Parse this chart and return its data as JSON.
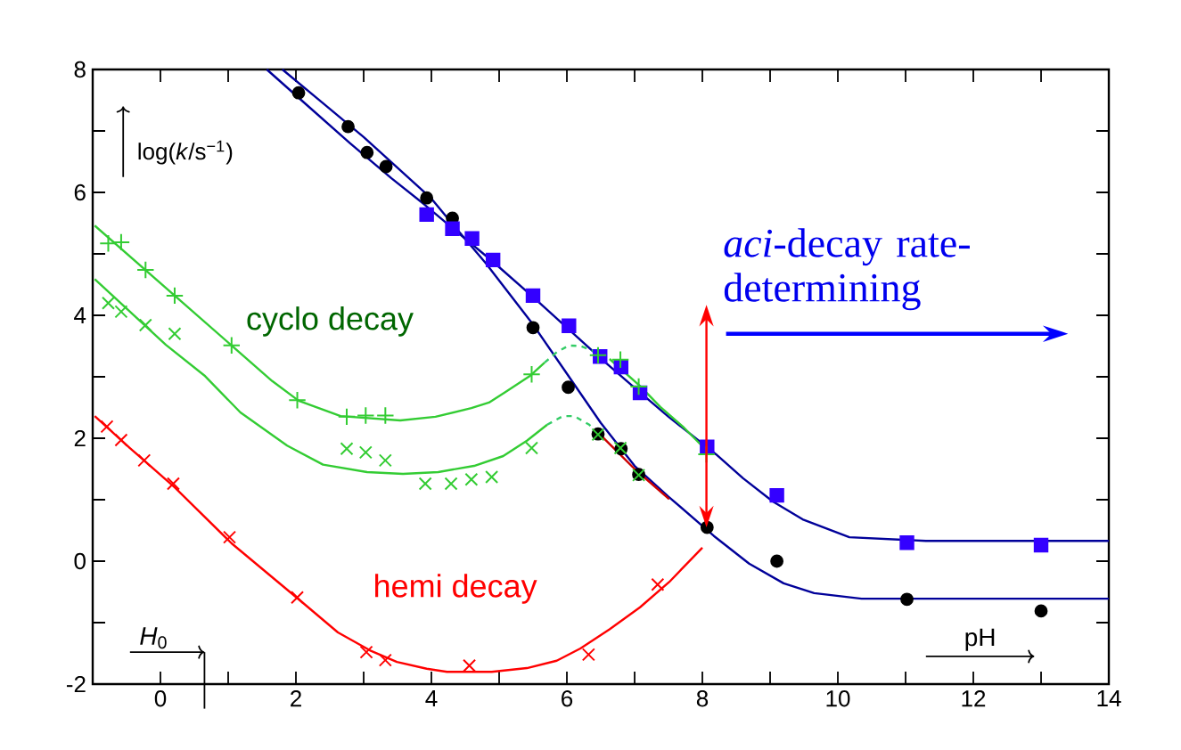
{
  "chart_data": {
    "type": "scatter",
    "xlabel": "pH",
    "ylabel": "log(*k*/s$^{−1}$)",
    "xlim": [
      -1,
      14
    ],
    "ylim": [
      -2,
      8
    ],
    "xticks": [
      {
        "value": -1,
        "label": null
      },
      0,
      {
        "value": 1,
        "label": null
      },
      2,
      {
        "value": 3,
        "label": null
      },
      4,
      {
        "value": 5,
        "label": null
      },
      6,
      {
        "value": 7,
        "label": null
      },
      8,
      {
        "value": 9,
        "label": null
      },
      10,
      {
        "value": 11,
        "label": null
      },
      12,
      {
        "value": 13,
        "label": null
      },
      14
    ],
    "yticks": [
      -2,
      {
        "value": -1,
        "label": null
      },
      0,
      {
        "value": 1,
        "label": null
      },
      2,
      {
        "value": 3,
        "label": null
      },
      4,
      {
        "value": 5,
        "label": null
      },
      6,
      {
        "value": 7,
        "label": null
      },
      8
    ],
    "grid": false,
    "marker": "cross",
    "annotations": [
      "cyclo decay",
      "hemi decay",
      "*aci*-decay rate-determining",
      "*H*$_{0}$"
    ],
    "series": [
      {
        "marker": "circle",
        "color": "#000000",
        "x": [
          2.04,
          2.77,
          3.05,
          3.33,
          3.93,
          4.31,
          5.5,
          6.02,
          6.46,
          6.8,
          7.06,
          8.07,
          9.1,
          11.02,
          13.0
        ],
        "values": [
          7.62,
          7.07,
          6.65,
          6.42,
          5.91,
          5.58,
          3.8,
          2.83,
          2.07,
          1.83,
          1.41,
          0.55,
          0.0,
          -0.62,
          -0.81
        ]
      },
      {
        "marker": "square",
        "color": "#3300ff",
        "x": [
          3.93,
          4.31,
          4.6,
          4.91,
          5.5,
          6.03,
          6.49,
          6.8,
          7.08,
          8.07,
          9.1,
          11.02,
          13.0
        ],
        "values": [
          5.64,
          5.41,
          5.25,
          4.9,
          4.32,
          3.83,
          3.33,
          3.16,
          2.74,
          1.86,
          1.07,
          0.3,
          0.26
        ]
      },
      {
        "type": "line",
        "marker": "none",
        "line_style": "solid",
        "color": "#000099",
        "x": [
          1.8,
          2.4,
          3.0,
          3.5,
          4.0,
          4.3,
          4.8,
          5.5,
          6.0,
          6.5,
          7.0,
          7.5,
          8.17,
          8.69,
          9.2,
          9.65,
          10.35,
          14
        ],
        "values": [
          8.0,
          7.45,
          6.9,
          6.4,
          5.9,
          5.5,
          4.85,
          3.85,
          3.05,
          2.25,
          1.55,
          1.05,
          0.41,
          -0.04,
          -0.36,
          -0.52,
          -0.61,
          -0.61
        ]
      },
      {
        "type": "line",
        "marker": "none",
        "line_style": "solid",
        "color": "#000099",
        "x": [
          1.57,
          2.04,
          2.8,
          3.41,
          3.9,
          4.3,
          4.9,
          5.5,
          6.0,
          6.5,
          7.0,
          7.5,
          8.2,
          8.6,
          9.04,
          9.48,
          10.17,
          11.3,
          14
        ],
        "values": [
          8.0,
          7.54,
          6.8,
          6.23,
          5.8,
          5.43,
          4.88,
          4.3,
          3.8,
          3.3,
          2.82,
          2.35,
          1.74,
          1.35,
          0.97,
          0.68,
          0.39,
          0.33,
          0.33
        ]
      },
      {
        "type": "line",
        "marker": "none",
        "line_style": "solid",
        "color": "#33cc33",
        "x": [
          -0.97,
          0.21,
          1.05,
          1.65,
          2.04,
          2.66,
          3.54,
          4.06,
          4.59,
          4.85,
          5.09,
          5.45,
          5.67
        ],
        "values": [
          5.46,
          4.32,
          3.51,
          2.93,
          2.61,
          2.36,
          2.29,
          2.35,
          2.49,
          2.58,
          2.75,
          3.01,
          3.23
        ]
      },
      {
        "type": "line",
        "marker": "none",
        "line_style": "dashed",
        "color": "#33cc66",
        "x": [
          5.67,
          5.85,
          6.03,
          6.2,
          6.37,
          6.63
        ],
        "values": [
          3.23,
          3.4,
          3.51,
          3.5,
          3.43,
          3.29
        ]
      },
      {
        "type": "line",
        "marker": "none",
        "line_style": "solid",
        "color": "#33cc33",
        "x": [
          6.63,
          7.08,
          7.38,
          7.73,
          7.99
        ],
        "values": [
          3.29,
          2.85,
          2.51,
          2.17,
          1.88
        ]
      },
      {
        "type": "line",
        "marker": "none",
        "line_style": "solid",
        "color": "#33cc33",
        "x": [
          -0.97,
          0.08,
          0.66,
          1.18,
          1.87,
          2.4,
          3.05,
          3.58,
          4.1,
          4.63,
          5.06,
          5.41,
          5.71
        ],
        "values": [
          4.59,
          3.52,
          3.01,
          2.42,
          1.88,
          1.57,
          1.45,
          1.42,
          1.45,
          1.55,
          1.71,
          1.96,
          2.22
        ]
      },
      {
        "type": "line",
        "marker": "none",
        "line_style": "dashed",
        "color": "#33cc66",
        "x": [
          5.71,
          5.94,
          6.11,
          6.33,
          6.49
        ],
        "values": [
          2.22,
          2.36,
          2.36,
          2.22,
          2.06
        ]
      },
      {
        "type": "line",
        "marker": "none",
        "line_style": "solid",
        "color": "#ff0000",
        "x": [
          -0.97,
          -0.45,
          0.21,
          1.05,
          2.04,
          2.62,
          3.09,
          3.49,
          3.93,
          4.23,
          4.89,
          5.41,
          5.85,
          6.2,
          6.63,
          7.08,
          7.51,
          8.0
        ],
        "values": [
          2.36,
          1.84,
          1.2,
          0.29,
          -0.62,
          -1.16,
          -1.45,
          -1.64,
          -1.75,
          -1.8,
          -1.8,
          -1.74,
          -1.62,
          -1.42,
          -1.11,
          -0.75,
          -0.34,
          0.22
        ]
      },
      {
        "type": "line",
        "marker": "none",
        "line_style": "solid",
        "color": "#cc0000",
        "x": [
          6.49,
          7.0,
          7.51
        ],
        "values": [
          2.06,
          1.5,
          1.01
        ]
      },
      {
        "color": "#33cc33",
        "x": [
          -0.77,
          -0.58,
          -0.22,
          0.21,
          1.05,
          2.02,
          2.75,
          3.03,
          3.32,
          5.48,
          6.46,
          6.79,
          7.06,
          8.06
        ],
        "values": [
          5.17,
          5.19,
          4.74,
          4.32,
          3.51,
          2.62,
          2.35,
          2.37,
          2.37,
          3.04,
          3.35,
          3.28,
          2.84,
          1.74
        ]
      },
      {
        "marker": "cross",
        "color": "#33cc33",
        "x": [
          -0.77,
          -0.58,
          -0.22,
          0.21,
          2.75,
          3.03,
          3.32,
          3.91,
          4.29,
          4.59,
          4.89,
          5.48,
          6.46,
          6.79,
          7.06
        ],
        "values": [
          4.2,
          4.06,
          3.84,
          3.7,
          1.83,
          1.77,
          1.64,
          1.26,
          1.26,
          1.33,
          1.37,
          1.84,
          2.06,
          1.84,
          1.4
        ]
      },
      {
        "marker": "cross",
        "color": "#ff0000",
        "x": [
          -0.79,
          -0.58,
          -0.24,
          0.19,
          1.02,
          2.02,
          3.04,
          3.32,
          4.56,
          6.32,
          7.34
        ],
        "values": [
          2.19,
          1.97,
          1.64,
          1.26,
          0.39,
          -0.59,
          -1.48,
          -1.61,
          -1.7,
          -1.52,
          -0.38
        ]
      }
    ]
  }
}
